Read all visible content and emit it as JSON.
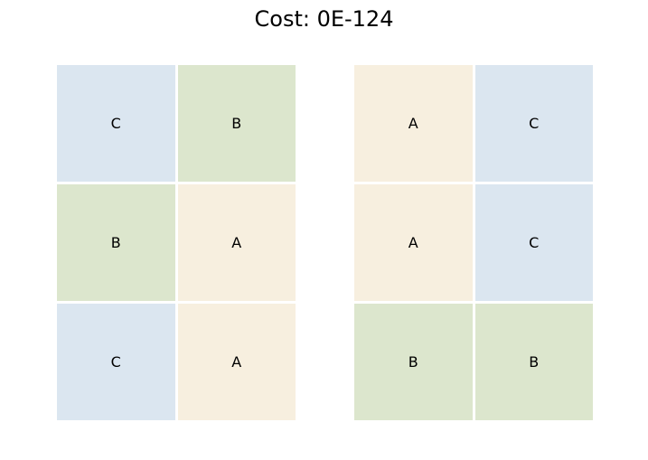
{
  "title": "Cost: 0E-124",
  "colors": {
    "A": "#f7efdf",
    "B": "#dce6cd",
    "C": "#dbe6f0"
  },
  "grids": [
    {
      "cells": [
        [
          "C",
          "B"
        ],
        [
          "B",
          "A"
        ],
        [
          "C",
          "A"
        ]
      ]
    },
    {
      "cells": [
        [
          "A",
          "C"
        ],
        [
          "A",
          "C"
        ],
        [
          "B",
          "B"
        ]
      ]
    }
  ]
}
